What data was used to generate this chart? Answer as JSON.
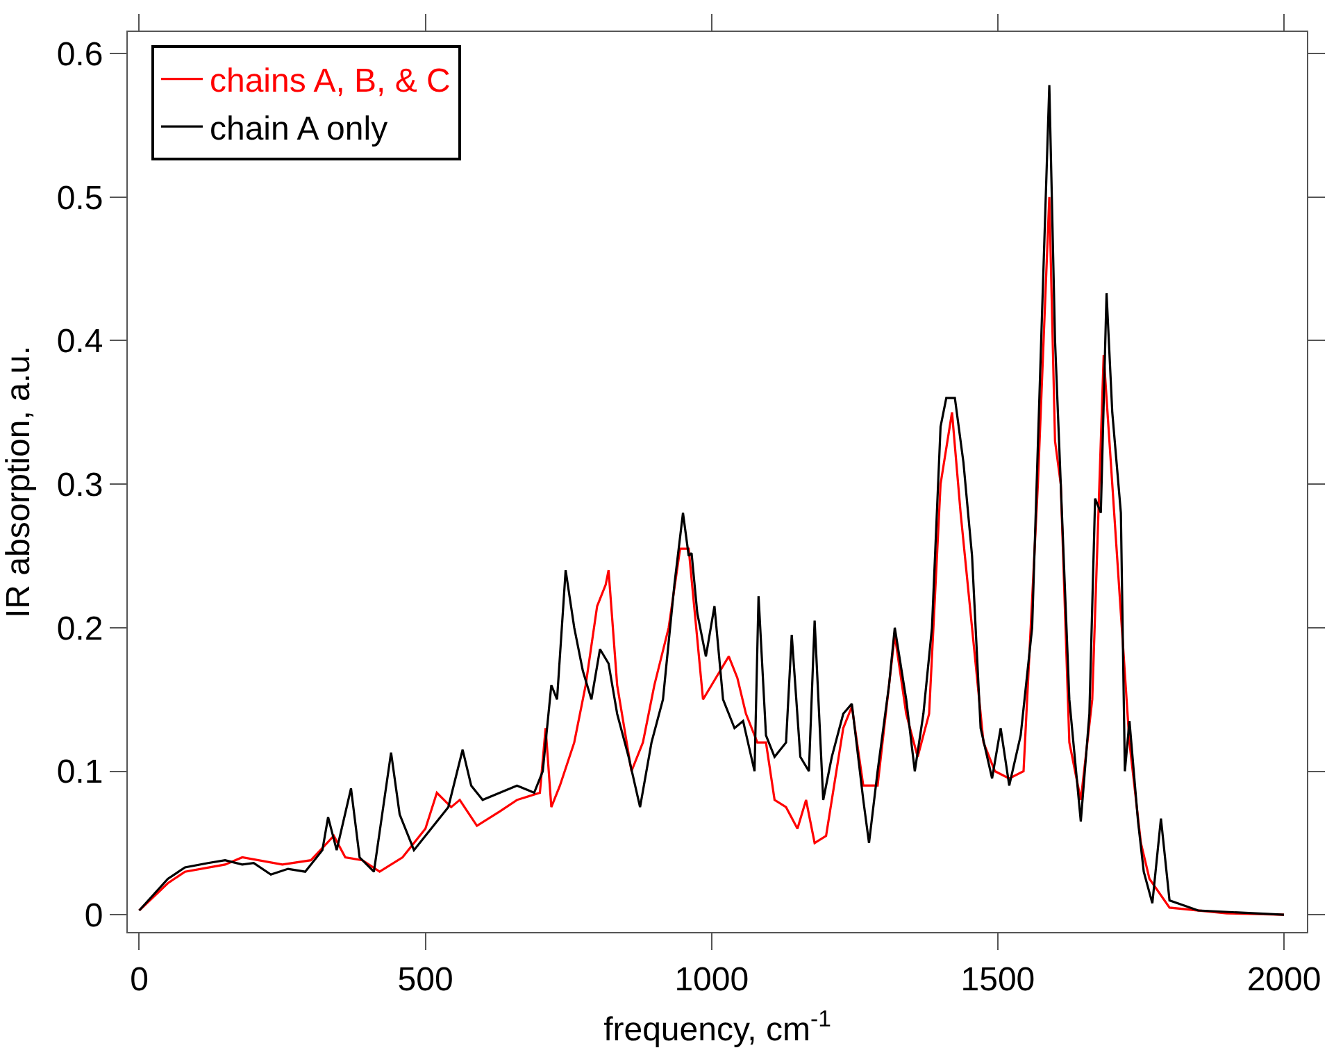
{
  "chart_data": {
    "type": "line",
    "xlabel": "frequency, cm$^{-1}$",
    "ylabel": "IR absorption, a.u.",
    "xlim": [
      -20,
      2040
    ],
    "ylim": [
      -0.012,
      0.615
    ],
    "xticks": [
      0,
      500,
      1000,
      1500,
      2000
    ],
    "yticks": [
      0,
      0.1,
      0.2,
      0.3,
      0.4,
      0.5,
      0.6
    ],
    "grid": false,
    "legend": "top left",
    "marker": "none",
    "line_style": "solid",
    "series": [
      {
        "name": "chains A, B, & C",
        "color": "#ff0000",
        "x": [
          0,
          50,
          80,
          150,
          180,
          250,
          300,
          340,
          360,
          390,
          420,
          460,
          500,
          520,
          545,
          560,
          590,
          630,
          660,
          700,
          710,
          720,
          735,
          760,
          780,
          800,
          815,
          820,
          835,
          860,
          880,
          900,
          925,
          945,
          960,
          985,
          1000,
          1015,
          1030,
          1045,
          1060,
          1080,
          1095,
          1110,
          1130,
          1150,
          1165,
          1180,
          1200,
          1230,
          1245,
          1265,
          1290,
          1320,
          1340,
          1360,
          1380,
          1400,
          1420,
          1435,
          1455,
          1475,
          1495,
          1520,
          1545,
          1570,
          1590,
          1600,
          1610,
          1625,
          1645,
          1665,
          1685,
          1700,
          1715,
          1730,
          1750,
          1765,
          1800,
          1900,
          2000
        ],
        "values": [
          0.003,
          0.022,
          0.03,
          0.035,
          0.04,
          0.035,
          0.038,
          0.055,
          0.04,
          0.038,
          0.03,
          0.04,
          0.06,
          0.085,
          0.075,
          0.08,
          0.062,
          0.072,
          0.08,
          0.085,
          0.13,
          0.075,
          0.09,
          0.12,
          0.16,
          0.215,
          0.23,
          0.24,
          0.16,
          0.1,
          0.12,
          0.16,
          0.2,
          0.255,
          0.255,
          0.15,
          0.16,
          0.17,
          0.18,
          0.165,
          0.14,
          0.12,
          0.12,
          0.08,
          0.075,
          0.06,
          0.08,
          0.05,
          0.055,
          0.13,
          0.145,
          0.09,
          0.09,
          0.195,
          0.14,
          0.11,
          0.14,
          0.3,
          0.35,
          0.28,
          0.2,
          0.12,
          0.1,
          0.095,
          0.1,
          0.3,
          0.5,
          0.33,
          0.3,
          0.12,
          0.08,
          0.15,
          0.39,
          0.3,
          0.21,
          0.12,
          0.05,
          0.025,
          0.005,
          0.001,
          0
        ]
      },
      {
        "name": "chain A only",
        "color": "#000000",
        "x": [
          0,
          50,
          80,
          120,
          150,
          180,
          200,
          230,
          260,
          290,
          320,
          330,
          345,
          370,
          385,
          410,
          440,
          455,
          480,
          510,
          540,
          565,
          580,
          600,
          630,
          660,
          690,
          705,
          720,
          730,
          745,
          760,
          775,
          790,
          805,
          820,
          835,
          855,
          875,
          895,
          915,
          935,
          950,
          960,
          965,
          975,
          990,
          1005,
          1020,
          1040,
          1055,
          1075,
          1082,
          1095,
          1110,
          1130,
          1140,
          1155,
          1170,
          1180,
          1195,
          1210,
          1230,
          1245,
          1265,
          1275,
          1290,
          1310,
          1320,
          1340,
          1355,
          1370,
          1385,
          1400,
          1410,
          1425,
          1440,
          1455,
          1470,
          1490,
          1505,
          1520,
          1540,
          1560,
          1575,
          1590,
          1600,
          1610,
          1625,
          1645,
          1660,
          1670,
          1680,
          1690,
          1700,
          1715,
          1722,
          1730,
          1745,
          1755,
          1770,
          1785,
          1800,
          1850,
          2000
        ],
        "values": [
          0.003,
          0.025,
          0.033,
          0.036,
          0.038,
          0.035,
          0.036,
          0.028,
          0.032,
          0.03,
          0.045,
          0.068,
          0.045,
          0.088,
          0.04,
          0.03,
          0.113,
          0.07,
          0.045,
          0.06,
          0.075,
          0.115,
          0.09,
          0.08,
          0.085,
          0.09,
          0.085,
          0.1,
          0.16,
          0.15,
          0.24,
          0.2,
          0.17,
          0.15,
          0.185,
          0.175,
          0.14,
          0.11,
          0.075,
          0.12,
          0.15,
          0.23,
          0.28,
          0.25,
          0.252,
          0.21,
          0.18,
          0.215,
          0.15,
          0.13,
          0.135,
          0.1,
          0.222,
          0.125,
          0.11,
          0.12,
          0.195,
          0.11,
          0.1,
          0.205,
          0.08,
          0.11,
          0.14,
          0.147,
          0.08,
          0.05,
          0.1,
          0.16,
          0.2,
          0.15,
          0.1,
          0.14,
          0.2,
          0.34,
          0.36,
          0.36,
          0.315,
          0.25,
          0.13,
          0.095,
          0.13,
          0.09,
          0.125,
          0.2,
          0.39,
          0.578,
          0.4,
          0.3,
          0.15,
          0.065,
          0.14,
          0.29,
          0.28,
          0.433,
          0.35,
          0.28,
          0.1,
          0.135,
          0.065,
          0.03,
          0.008,
          0.067,
          0.01,
          0.003,
          0
        ]
      }
    ]
  }
}
